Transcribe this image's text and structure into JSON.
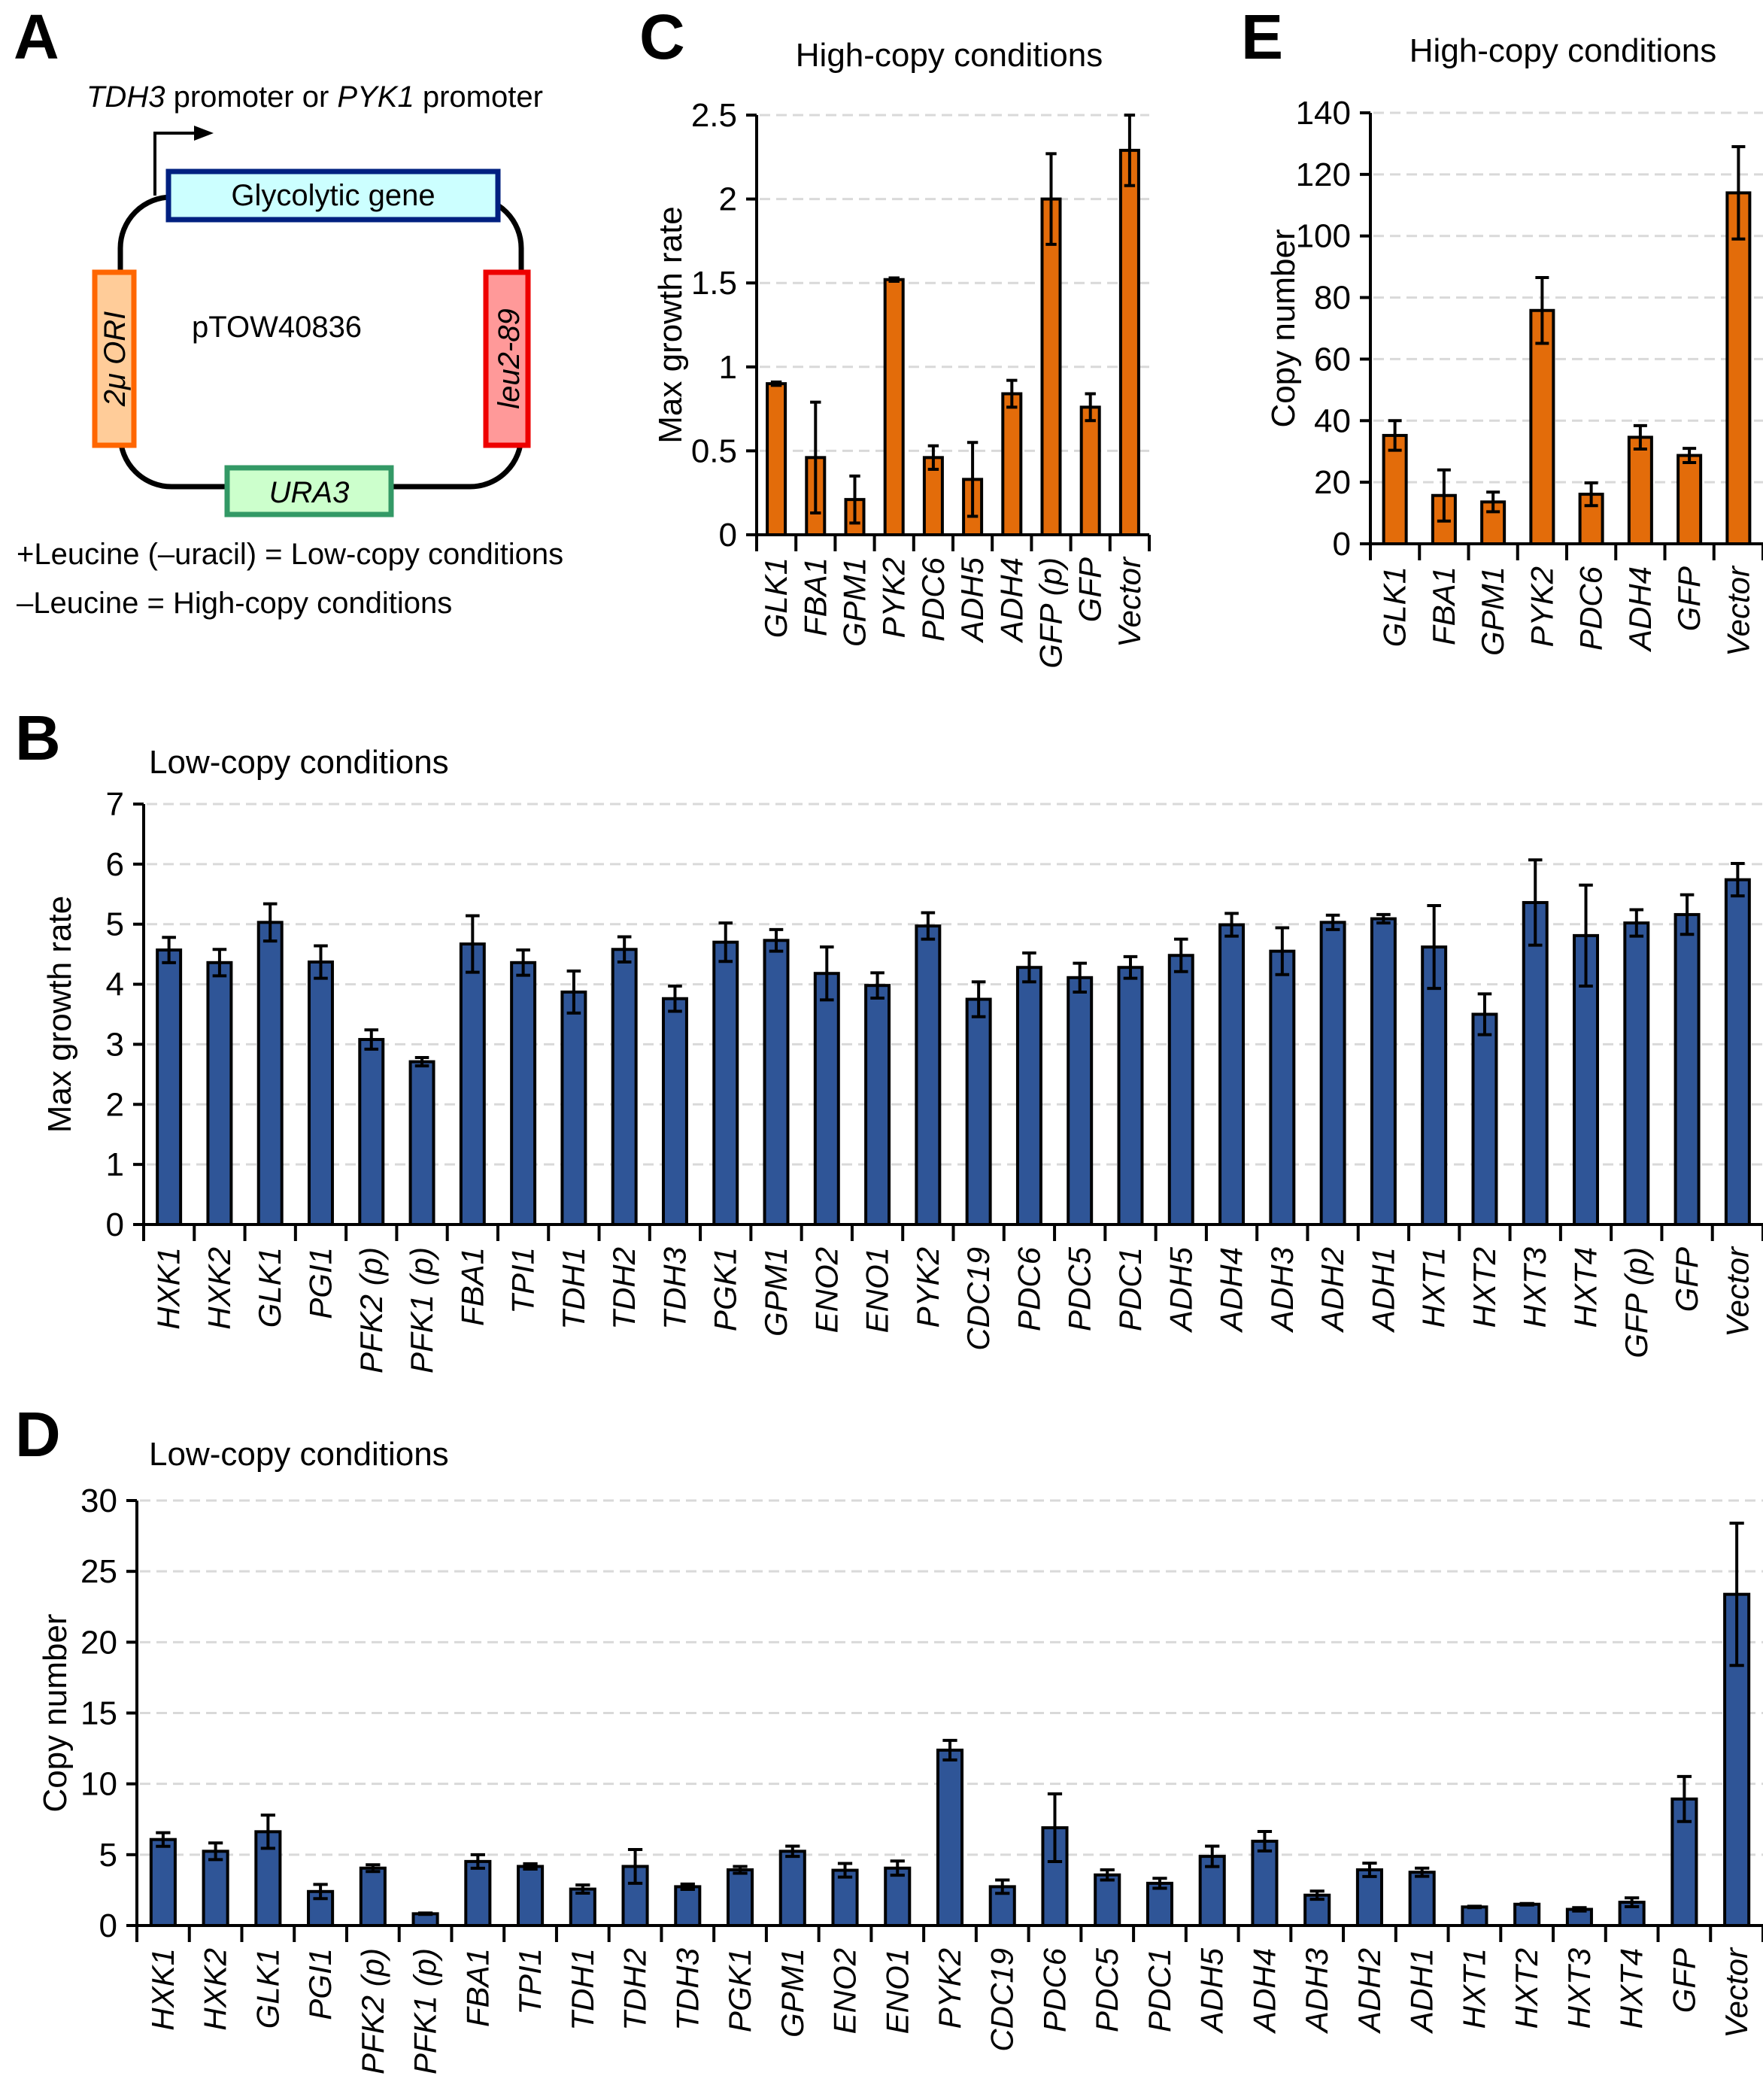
{
  "panel_a": {
    "letter": "A",
    "promoter_text": [
      {
        "text": "TDH3",
        "italic": true
      },
      {
        "text": " promoter or ",
        "italic": false
      },
      {
        "text": "PYK1",
        "italic": true
      },
      {
        "text": " promoter",
        "italic": false
      }
    ],
    "plasmid_name": "pTOW40836",
    "elements": {
      "glycolytic_gene": {
        "label": "Glycolytic gene",
        "fill": "#ccffff",
        "stroke": "#002080"
      },
      "ori": {
        "label": "2μ ORI",
        "fill": "#ffcc99",
        "stroke": "#ff6600"
      },
      "leu": {
        "label": "leu2-89",
        "fill": "#ff9999",
        "stroke": "#ee0000"
      },
      "ura": {
        "label": "URA3",
        "fill": "#ccffcc",
        "stroke": "#339966"
      }
    },
    "notes": [
      "+Leucine (–uracil) = Low-copy conditions",
      "–Leucine = High-copy conditions"
    ]
  },
  "colors": {
    "orange_bar": "#e36c0a",
    "blue_bar": "#2f5597"
  },
  "chart_data": [
    {
      "id": "C",
      "letter": "C",
      "type": "bar",
      "title": "High-copy conditions",
      "xlabel": "",
      "ylabel": "Max growth rate",
      "ylim": [
        0,
        2.5
      ],
      "yticks": [
        0,
        0.5,
        1,
        1.5,
        2,
        2.5
      ],
      "ytick_labels": [
        "0",
        "0.5",
        "1",
        "1.5",
        "2",
        "2.5"
      ],
      "grid": true,
      "color": "orange",
      "categories": [
        "GLK1",
        "FBA1",
        "GPM1",
        "PYK2",
        "PDC6",
        "ADH5",
        "ADH4",
        "GFP (p)",
        "GFP",
        "Vector"
      ],
      "values": [
        0.9,
        0.46,
        0.21,
        1.52,
        0.46,
        0.33,
        0.84,
        2.0,
        0.76,
        2.29
      ],
      "errors": [
        0.01,
        0.33,
        0.14,
        0.01,
        0.07,
        0.22,
        0.08,
        0.27,
        0.08,
        0.21
      ]
    },
    {
      "id": "E",
      "letter": "E",
      "type": "bar",
      "title": "High-copy conditions",
      "xlabel": "",
      "ylabel": "Copy number",
      "ylim": [
        0,
        140
      ],
      "yticks": [
        0,
        20,
        40,
        60,
        80,
        100,
        120,
        140
      ],
      "ytick_labels": [
        "0",
        "20",
        "40",
        "60",
        "80",
        "100",
        "120",
        "140"
      ],
      "grid": true,
      "color": "orange",
      "categories": [
        "GLK1",
        "FBA1",
        "GPM1",
        "PYK2",
        "PDC6",
        "ADH4",
        "GFP",
        "Vector"
      ],
      "values": [
        35.2,
        15.7,
        13.6,
        75.8,
        16.1,
        34.6,
        28.7,
        114
      ],
      "errors": [
        4.8,
        8.3,
        3.2,
        10.7,
        3.7,
        3.8,
        2.3,
        15
      ]
    },
    {
      "id": "B",
      "letter": "B",
      "type": "bar",
      "title": "Low-copy conditions",
      "xlabel": "",
      "ylabel": "Max growth rate",
      "ylim": [
        0,
        7
      ],
      "yticks": [
        0,
        1,
        2,
        3,
        4,
        5,
        6,
        7
      ],
      "ytick_labels": [
        "0",
        "1",
        "2",
        "3",
        "4",
        "5",
        "6",
        "7"
      ],
      "grid": true,
      "color": "blue",
      "categories": [
        "HXK1",
        "HXK2",
        "GLK1",
        "PGI1",
        "PFK2 (p)",
        "PFK1 (p)",
        "FBA1",
        "TPI1",
        "TDH1",
        "TDH2",
        "TDH3",
        "PGK1",
        "GPM1",
        "ENO2",
        "ENO1",
        "PYK2",
        "CDC19",
        "PDC6",
        "PDC5",
        "PDC1",
        "ADH5",
        "ADH4",
        "ADH3",
        "ADH2",
        "ADH1",
        "HXT1",
        "HXT2",
        "HXT3",
        "HXT4",
        "GFP (p)",
        "GFP",
        "Vector"
      ],
      "values": [
        4.57,
        4.36,
        5.03,
        4.37,
        3.08,
        2.71,
        4.67,
        4.36,
        3.87,
        4.58,
        3.76,
        4.7,
        4.73,
        4.18,
        3.98,
        4.97,
        3.75,
        4.28,
        4.11,
        4.28,
        4.48,
        4.99,
        4.55,
        5.03,
        5.09,
        4.62,
        3.5,
        5.36,
        4.81,
        5.02,
        5.16,
        5.74
      ],
      "errors": [
        0.21,
        0.22,
        0.31,
        0.27,
        0.16,
        0.07,
        0.47,
        0.21,
        0.35,
        0.21,
        0.21,
        0.32,
        0.18,
        0.44,
        0.21,
        0.22,
        0.29,
        0.24,
        0.24,
        0.18,
        0.27,
        0.19,
        0.39,
        0.12,
        0.07,
        0.69,
        0.34,
        0.71,
        0.84,
        0.22,
        0.33,
        0.27
      ]
    },
    {
      "id": "D",
      "letter": "D",
      "type": "bar",
      "title": "Low-copy conditions",
      "xlabel": "",
      "ylabel": "Copy number",
      "ylim": [
        0,
        30
      ],
      "yticks": [
        0,
        5,
        10,
        15,
        20,
        25,
        30
      ],
      "ytick_labels": [
        "0",
        "5",
        "10",
        "15",
        "20",
        "25",
        "30"
      ],
      "grid": true,
      "color": "blue",
      "categories": [
        "HXK1",
        "HXK2",
        "GLK1",
        "PGI1",
        "PFK2 (p)",
        "PFK1 (p)",
        "FBA1",
        "TPI1",
        "TDH1",
        "TDH2",
        "TDH3",
        "PGK1",
        "GPM1",
        "ENO2",
        "ENO1",
        "PYK2",
        "CDC19",
        "PDC6",
        "PDC5",
        "PDC1",
        "ADH5",
        "ADH4",
        "ADH3",
        "ADH2",
        "ADH1",
        "HXT1",
        "HXT2",
        "HXT3",
        "HXT4",
        "GFP",
        "Vector"
      ],
      "values": [
        6.07,
        5.24,
        6.62,
        2.4,
        4.05,
        0.83,
        4.52,
        4.17,
        2.57,
        4.17,
        2.74,
        3.93,
        5.24,
        3.9,
        4.05,
        12.38,
        2.74,
        6.9,
        3.57,
        2.98,
        4.88,
        5.95,
        2.14,
        3.93,
        3.76,
        1.31,
        1.5,
        1.14,
        1.64,
        8.93,
        23.38
      ],
      "errors": [
        0.48,
        0.59,
        1.17,
        0.5,
        0.24,
        0.05,
        0.48,
        0.19,
        0.29,
        1.19,
        0.19,
        0.24,
        0.36,
        0.48,
        0.5,
        0.69,
        0.47,
        2.39,
        0.36,
        0.35,
        0.72,
        0.69,
        0.29,
        0.47,
        0.29,
        0.05,
        0.05,
        0.12,
        0.31,
        1.59,
        5.02
      ]
    }
  ]
}
